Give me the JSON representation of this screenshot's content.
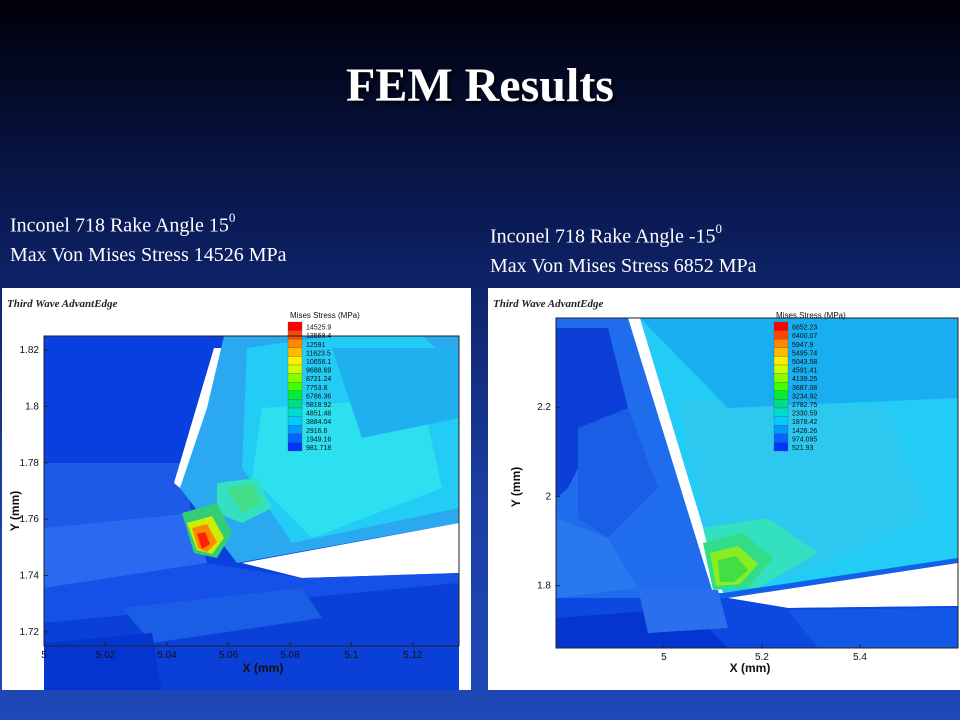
{
  "slide": {
    "title": "FEM Results"
  },
  "captions": [
    {
      "line1": "Inconel 718 Rake Angle  15",
      "line1_sup": "0",
      "line2": "Max Von Mises Stress 14526 MPa"
    },
    {
      "line1": "Inconel 718 Rake Angle  -15",
      "line1_sup": "0",
      "line2": "Max Von Mises Stress 6852 MPa"
    }
  ],
  "colors": {
    "scale": [
      "#ff0000",
      "#ff4400",
      "#ff8800",
      "#ffbb00",
      "#ffee00",
      "#ccff00",
      "#88ff00",
      "#44ff00",
      "#00ee33",
      "#00dd88",
      "#00ddcc",
      "#00ccff",
      "#0099ff",
      "#0066ff",
      "#0033ff",
      "#0000ff"
    ]
  },
  "chart_data": [
    {
      "type": "heatmap",
      "brand": "Third Wave AdvantEdge",
      "legend_title": "Mises Stress (MPa)",
      "legend_values": [
        "14525.9",
        "13558.4",
        "12591",
        "11623.5",
        "10656.1",
        "9688.69",
        "8721.24",
        "7753.8",
        "6786.36",
        "5818.92",
        "4851.48",
        "3884.04",
        "2916.6",
        "1949.16",
        "981.718"
      ],
      "xlabel": "X (mm)",
      "ylabel": "Y (mm)",
      "xticks": [
        "5",
        "5.02",
        "5.04",
        "5.06",
        "5.08",
        "5.1",
        "5.12"
      ],
      "yticks": [
        "1.72",
        "1.74",
        "1.76",
        "1.78",
        "1.8",
        "1.82"
      ],
      "xlim": [
        5,
        5.135
      ],
      "ylim": [
        1.715,
        1.825
      ],
      "max_stress": 14526
    },
    {
      "type": "heatmap",
      "brand": "Third Wave AdvantEdge",
      "legend_title": "Mises Stress (MPa)",
      "legend_values": [
        "6852.23",
        "6400.07",
        "5947.9",
        "5495.74",
        "5043.58",
        "4591.41",
        "4139.25",
        "3687.08",
        "3234.92",
        "2782.75",
        "2330.59",
        "1878.42",
        "1426.26",
        "974.095",
        "521.93"
      ],
      "xlabel": "X (mm)",
      "ylabel": "Y (mm)",
      "xticks": [
        "5",
        "5.2",
        "5.4"
      ],
      "yticks": [
        "1.8",
        "2",
        "2.2"
      ],
      "xlim": [
        4.78,
        5.6
      ],
      "ylim": [
        1.66,
        2.4
      ],
      "max_stress": 6852
    }
  ]
}
